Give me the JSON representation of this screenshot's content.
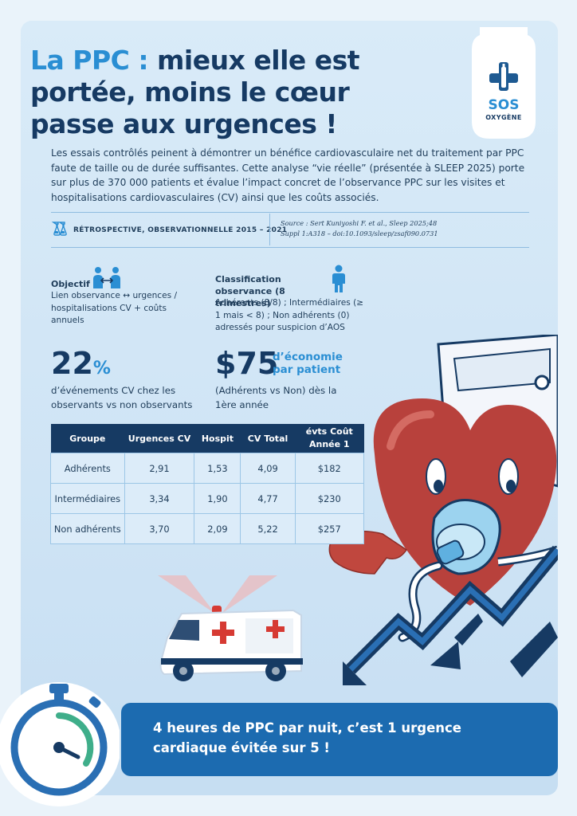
{
  "title": {
    "accent": "La PPC :",
    "rest": " mieux elle est portée, moins le cœur passe aux urgences !"
  },
  "badge": {
    "brand_top": "SOS",
    "brand_bottom": "OXYGÈNE"
  },
  "intro": "Les essais contrôlés peinent à démontrer un bénéfice cardiovasculaire net du traitement par PPC faute de taille ou de durée suffisantes. Cette analyse “vie réelle” (présentée à SLEEP 2025) porte sur plus de 370 000 patients et évalue l’impact concret de l’observance PPC sur les visites et hospitalisations cardiovasculaires (CV) ainsi que les coûts associés.",
  "meta": {
    "study_type": "RÉTROSPECTIVE, OBSERVATIONNELLE 2015 – 2021",
    "source": "Source : Sert Kuniyoshi F. et al., Sleep 2025;48 Suppl 1:A318 – doi:10.1093/sleep/zsaf090.0731",
    "icon": "flask-icon"
  },
  "objectif": {
    "title": "Objectif",
    "text": "Lien observance ↔ urgences / hospitalisations CV + coûts annuels",
    "icon": "people-exchange-icon"
  },
  "classification": {
    "title": "Classification observance (8 trimestres)",
    "text": "Adhérents (8/8) ; Intermédiaires (≥ 1 mais < 8) ; Non adhérents (0) adressés pour suspicion d’AOS",
    "icon": "person-icon"
  },
  "stat1": {
    "value": "22",
    "symbol": "%",
    "text": "d’événements CV chez les observants vs non observants"
  },
  "stat2": {
    "value": "$75",
    "label": "d’économie par patient",
    "text": "(Adhérents vs Non) dès la 1ère année"
  },
  "table": {
    "headers": [
      "Groupe",
      "Urgences CV",
      "Hospit",
      "CV Total",
      "évts Coût Année 1"
    ],
    "rows": [
      [
        "Adhérents",
        "2,91",
        "1,53",
        "4,09",
        "$182"
      ],
      [
        "Intermédiaires",
        "3,34",
        "1,90",
        "4,77",
        "$230"
      ],
      [
        "Non adhérents",
        "3,70",
        "2,09",
        "5,22",
        "$257"
      ]
    ]
  },
  "footer": {
    "text": "4 heures de PPC par nuit, c’est 1 urgence cardiaque évitée sur 5 !",
    "icon": "stopwatch-icon"
  },
  "colors": {
    "navy": "#163a63",
    "accent": "#2a8ed3",
    "bar": "#1c6bb0",
    "heart": "#b8413c",
    "bg": "#d8eaf8"
  }
}
